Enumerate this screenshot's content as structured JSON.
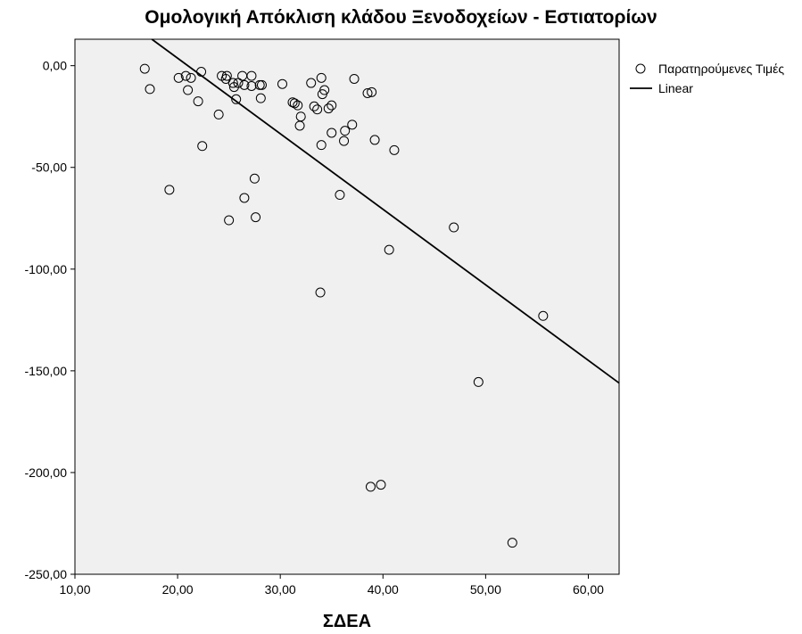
{
  "chart_data": {
    "type": "scatter",
    "title": "Ομολογική Απόκλιση κλάδου Ξενοδοχείων - Εστιατορίων",
    "xlabel": "ΣΔΕΑ",
    "ylabel": "",
    "xlim": [
      10,
      63
    ],
    "ylim": [
      -250,
      13
    ],
    "x_ticks": [
      10,
      20,
      30,
      40,
      50,
      60
    ],
    "y_ticks": [
      0,
      -50,
      -100,
      -150,
      -200,
      -250
    ],
    "x_tick_labels": [
      "10,00",
      "20,00",
      "30,00",
      "40,00",
      "50,00",
      "60,00"
    ],
    "y_tick_labels": [
      "0,00",
      "-50,00",
      "-100,00",
      "-150,00",
      "-200,00",
      "-250,00"
    ],
    "grid": false,
    "legend_position": "top-right",
    "legend": [
      "Παρατηρούμενες Τιμές",
      "Linear"
    ],
    "series": [
      {
        "name": "Παρατηρούμενες Τιμές",
        "marker": "hollow-circle",
        "points": [
          [
            16.8,
            -1.5
          ],
          [
            17.3,
            -11.5
          ],
          [
            19.2,
            -61
          ],
          [
            20.1,
            -6
          ],
          [
            20.8,
            -5
          ],
          [
            21.0,
            -12
          ],
          [
            21.3,
            -6
          ],
          [
            22.0,
            -17.5
          ],
          [
            22.3,
            -3
          ],
          [
            22.4,
            -39.5
          ],
          [
            24.0,
            -24
          ],
          [
            24.3,
            -5
          ],
          [
            24.7,
            -6.5
          ],
          [
            24.8,
            -5
          ],
          [
            25.0,
            -76
          ],
          [
            25.4,
            -8.5
          ],
          [
            25.5,
            -10.5
          ],
          [
            25.7,
            -16.5
          ],
          [
            25.9,
            -8.5
          ],
          [
            26.3,
            -5
          ],
          [
            26.5,
            -9.5
          ],
          [
            26.5,
            -65
          ],
          [
            27.2,
            -10
          ],
          [
            27.2,
            -5
          ],
          [
            27.5,
            -55.5
          ],
          [
            27.6,
            -74.5
          ],
          [
            28.0,
            -9.5
          ],
          [
            28.1,
            -16
          ],
          [
            28.2,
            -9.5
          ],
          [
            30.2,
            -9
          ],
          [
            31.2,
            -18
          ],
          [
            31.4,
            -18.5
          ],
          [
            31.7,
            -19.5
          ],
          [
            31.9,
            -29.5
          ],
          [
            32.0,
            -25
          ],
          [
            33.0,
            -8.5
          ],
          [
            33.3,
            -20
          ],
          [
            33.6,
            -21.5
          ],
          [
            33.9,
            -111.5
          ],
          [
            34.0,
            -6
          ],
          [
            34.0,
            -39
          ],
          [
            34.1,
            -14
          ],
          [
            34.3,
            -12
          ],
          [
            34.7,
            -21
          ],
          [
            35.0,
            -19.5
          ],
          [
            35.0,
            -33
          ],
          [
            35.8,
            -63.5
          ],
          [
            36.2,
            -37
          ],
          [
            36.3,
            -32
          ],
          [
            37.0,
            -29
          ],
          [
            37.2,
            -6.5
          ],
          [
            38.5,
            -13.5
          ],
          [
            38.8,
            -207
          ],
          [
            38.9,
            -13
          ],
          [
            39.2,
            -36.5
          ],
          [
            39.8,
            -206
          ],
          [
            40.6,
            -90.5
          ],
          [
            41.1,
            -41.5
          ],
          [
            46.9,
            -79.5
          ],
          [
            49.3,
            -155.5
          ],
          [
            52.6,
            -234.5
          ],
          [
            55.6,
            -123
          ]
        ]
      },
      {
        "name": "Linear",
        "marker": "line",
        "points": [
          [
            17.49,
            13
          ],
          [
            63,
            -156
          ]
        ]
      }
    ]
  }
}
